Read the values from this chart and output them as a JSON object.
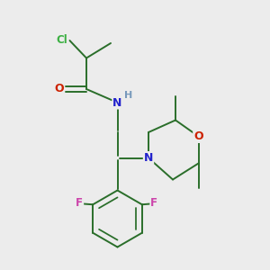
{
  "background_color": "#ececec",
  "bond_color": "#2a6e2a",
  "atom_colors": {
    "Cl": "#3cb043",
    "O": "#cc2200",
    "N": "#2222cc",
    "F": "#cc44aa",
    "H": "#7799bb",
    "C": "#2a6e2a"
  },
  "figsize": [
    3.0,
    3.0
  ],
  "dpi": 100,
  "lw": 1.4
}
